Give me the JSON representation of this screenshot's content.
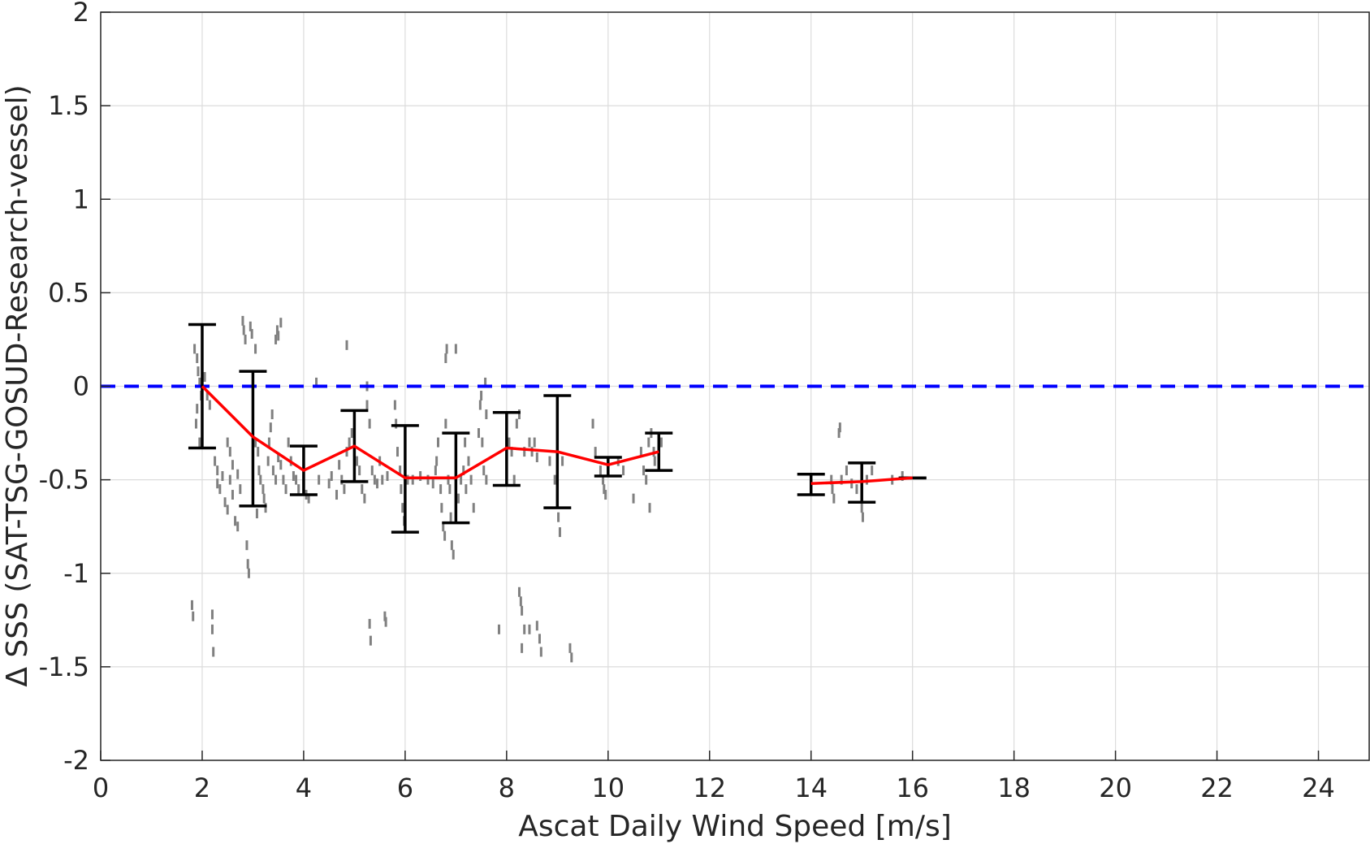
{
  "chart_data": {
    "type": "scatter",
    "xlabel": "Ascat Daily Wind Speed [m/s]",
    "ylabel": "Δ SSS (SAT-TSG-GOSUD-Research-vessel)",
    "xlim": [
      0,
      25
    ],
    "ylim": [
      -2,
      2
    ],
    "xticks": [
      0,
      2,
      4,
      6,
      8,
      10,
      12,
      14,
      16,
      18,
      20,
      22,
      24
    ],
    "yticks": [
      2,
      1.5,
      1,
      0.5,
      0,
      -0.5,
      -1,
      -1.5,
      -2
    ],
    "ytick_labels": [
      "2",
      "1.5",
      "1",
      "0.5",
      "0",
      "-0.5",
      "-1",
      "-1.5",
      "-2"
    ],
    "grid": true,
    "reference_line": {
      "y": 0,
      "color": "#0000ff",
      "style": "dashed"
    },
    "mean_series": {
      "color": "#ff0000",
      "segments": [
        {
          "x": [
            2,
            3,
            4,
            5,
            6,
            7,
            8,
            9,
            10,
            11
          ],
          "y": [
            0.0,
            -0.27,
            -0.45,
            -0.32,
            -0.49,
            -0.49,
            -0.33,
            -0.35,
            -0.42,
            -0.35
          ]
        },
        {
          "x": [
            14,
            15,
            16
          ],
          "y": [
            -0.52,
            -0.51,
            -0.49
          ]
        }
      ]
    },
    "error_bars": {
      "color": "#000000",
      "bars": [
        {
          "x": 2,
          "low": -0.33,
          "high": 0.33
        },
        {
          "x": 3,
          "low": -0.64,
          "high": 0.08
        },
        {
          "x": 4,
          "low": -0.58,
          "high": -0.32
        },
        {
          "x": 5,
          "low": -0.51,
          "high": -0.13
        },
        {
          "x": 6,
          "low": -0.78,
          "high": -0.21
        },
        {
          "x": 7,
          "low": -0.73,
          "high": -0.25
        },
        {
          "x": 8,
          "low": -0.53,
          "high": -0.14
        },
        {
          "x": 9,
          "low": -0.65,
          "high": -0.05
        },
        {
          "x": 10,
          "low": -0.48,
          "high": -0.38
        },
        {
          "x": 11,
          "low": -0.45,
          "high": -0.25
        },
        {
          "x": 14,
          "low": -0.58,
          "high": -0.47
        },
        {
          "x": 15,
          "low": -0.62,
          "high": -0.41
        },
        {
          "x": 16,
          "low": -0.49,
          "high": -0.49
        }
      ]
    },
    "scatter_color": "#808080",
    "scatter_points": [
      [
        1.85,
        0.2
      ],
      [
        1.9,
        0.15
      ],
      [
        1.92,
        0.08
      ],
      [
        1.95,
        0.02
      ],
      [
        1.98,
        -0.05
      ],
      [
        1.9,
        -0.12
      ],
      [
        1.88,
        -0.2
      ],
      [
        1.95,
        -0.3
      ],
      [
        2.05,
        0.05
      ],
      [
        2.1,
        -0.05
      ],
      [
        2.15,
        -0.1
      ],
      [
        1.8,
        -1.17
      ],
      [
        1.82,
        -1.23
      ],
      [
        2.2,
        -1.22
      ],
      [
        2.2,
        -1.3
      ],
      [
        2.22,
        -1.42
      ],
      [
        2.25,
        -0.4
      ],
      [
        2.3,
        -0.45
      ],
      [
        2.3,
        -0.52
      ],
      [
        2.35,
        -0.55
      ],
      [
        2.4,
        -0.48
      ],
      [
        2.45,
        -0.62
      ],
      [
        2.5,
        -0.66
      ],
      [
        2.55,
        -0.5
      ],
      [
        2.6,
        -0.42
      ],
      [
        2.55,
        -0.35
      ],
      [
        2.5,
        -0.3
      ],
      [
        2.6,
        -0.58
      ],
      [
        2.7,
        -0.47
      ],
      [
        2.65,
        -0.72
      ],
      [
        2.7,
        -0.75
      ],
      [
        2.75,
        -0.55
      ],
      [
        2.8,
        0.35
      ],
      [
        2.82,
        0.3
      ],
      [
        2.85,
        0.25
      ],
      [
        2.95,
        0.32
      ],
      [
        2.98,
        0.28
      ],
      [
        2.88,
        -0.85
      ],
      [
        2.9,
        -0.95
      ],
      [
        2.92,
        -1.0
      ],
      [
        3.05,
        0.2
      ],
      [
        3.05,
        -0.3
      ],
      [
        3.1,
        -0.35
      ],
      [
        3.12,
        -0.45
      ],
      [
        3.15,
        -0.5
      ],
      [
        3.2,
        -0.55
      ],
      [
        3.22,
        -0.6
      ],
      [
        3.25,
        -0.65
      ],
      [
        3.3,
        -0.4
      ],
      [
        3.32,
        -0.3
      ],
      [
        3.35,
        -0.22
      ],
      [
        3.38,
        -0.15
      ],
      [
        3.4,
        -0.45
      ],
      [
        3.45,
        -0.5
      ],
      [
        3.5,
        -0.38
      ],
      [
        3.55,
        -0.42
      ],
      [
        3.6,
        -0.5
      ],
      [
        3.65,
        -0.55
      ],
      [
        3.48,
        0.3
      ],
      [
        3.5,
        0.27
      ],
      [
        3.55,
        0.34
      ],
      [
        3.45,
        0.25
      ],
      [
        3.0,
        -0.58
      ],
      [
        3.08,
        -0.68
      ],
      [
        3.7,
        -0.3
      ],
      [
        3.75,
        -0.4
      ],
      [
        3.8,
        -0.48
      ],
      [
        3.85,
        -0.5
      ],
      [
        3.9,
        -0.55
      ],
      [
        4.0,
        -0.5
      ],
      [
        4.05,
        -0.58
      ],
      [
        4.1,
        -0.6
      ],
      [
        4.25,
        0.02
      ],
      [
        4.3,
        -0.5
      ],
      [
        4.5,
        -0.52
      ],
      [
        4.55,
        -0.48
      ],
      [
        4.7,
        -0.42
      ],
      [
        4.75,
        -0.5
      ],
      [
        4.8,
        -0.55
      ],
      [
        4.85,
        -0.35
      ],
      [
        4.9,
        -0.3
      ],
      [
        4.95,
        -0.25
      ],
      [
        5.0,
        -0.35
      ],
      [
        5.05,
        -0.4
      ],
      [
        5.1,
        -0.45
      ],
      [
        4.65,
        -0.58
      ],
      [
        5.15,
        -0.55
      ],
      [
        5.2,
        -0.6
      ],
      [
        4.85,
        0.22
      ],
      [
        5.25,
        -0.1
      ],
      [
        5.25,
        0.0
      ],
      [
        5.3,
        -0.2
      ],
      [
        5.35,
        -0.45
      ],
      [
        5.4,
        -0.5
      ],
      [
        5.45,
        -0.52
      ],
      [
        5.5,
        -0.4
      ],
      [
        5.55,
        -0.5
      ],
      [
        5.65,
        -0.48
      ],
      [
        5.3,
        -1.27
      ],
      [
        5.32,
        -1.36
      ],
      [
        5.6,
        -1.23
      ],
      [
        5.62,
        -1.26
      ],
      [
        5.8,
        -0.1
      ],
      [
        5.82,
        -0.2
      ],
      [
        5.85,
        -0.35
      ],
      [
        5.9,
        -0.45
      ],
      [
        5.92,
        -0.55
      ],
      [
        5.95,
        -0.65
      ],
      [
        5.98,
        -0.72
      ],
      [
        6.05,
        -0.5
      ],
      [
        6.15,
        -0.5
      ],
      [
        6.3,
        -0.48
      ],
      [
        6.45,
        -0.5
      ],
      [
        6.55,
        -0.52
      ],
      [
        6.6,
        -0.45
      ],
      [
        6.62,
        -0.4
      ],
      [
        6.65,
        -0.3
      ],
      [
        6.7,
        -0.55
      ],
      [
        6.72,
        -0.65
      ],
      [
        6.75,
        -0.75
      ],
      [
        6.78,
        -0.8
      ],
      [
        6.8,
        -0.2
      ],
      [
        6.8,
        0.15
      ],
      [
        6.82,
        0.2
      ],
      [
        6.85,
        -0.5
      ],
      [
        6.88,
        -0.55
      ],
      [
        6.9,
        -0.7
      ],
      [
        6.92,
        -0.85
      ],
      [
        6.95,
        -0.9
      ],
      [
        7.0,
        0.2
      ],
      [
        7.05,
        -0.6
      ],
      [
        7.1,
        -0.5
      ],
      [
        7.15,
        -0.45
      ],
      [
        7.18,
        -0.3
      ],
      [
        7.2,
        -0.55
      ],
      [
        7.25,
        -0.4
      ],
      [
        7.3,
        -0.5
      ],
      [
        7.35,
        -0.65
      ],
      [
        7.45,
        -0.25
      ],
      [
        7.48,
        -0.1
      ],
      [
        7.5,
        -0.05
      ],
      [
        7.52,
        -0.3
      ],
      [
        7.55,
        -0.45
      ],
      [
        7.6,
        -0.5
      ],
      [
        7.58,
        0.02
      ],
      [
        7.6,
        -0.15
      ],
      [
        7.85,
        -1.3
      ],
      [
        8.0,
        -0.25
      ],
      [
        8.05,
        -0.3
      ],
      [
        8.1,
        -0.35
      ],
      [
        8.15,
        -0.5
      ],
      [
        8.2,
        -0.2
      ],
      [
        8.25,
        -0.15
      ],
      [
        8.25,
        -1.1
      ],
      [
        8.28,
        -1.15
      ],
      [
        8.3,
        -1.2
      ],
      [
        8.35,
        -0.35
      ],
      [
        8.35,
        -1.3
      ],
      [
        8.3,
        -1.4
      ],
      [
        8.45,
        -0.3
      ],
      [
        8.5,
        -0.35
      ],
      [
        8.55,
        -0.3
      ],
      [
        8.6,
        -0.38
      ],
      [
        8.45,
        -1.3
      ],
      [
        8.6,
        -1.28
      ],
      [
        8.65,
        -1.35
      ],
      [
        8.68,
        -1.42
      ],
      [
        8.85,
        -0.4
      ],
      [
        8.95,
        -0.5
      ],
      [
        9.0,
        -0.6
      ],
      [
        9.02,
        -0.7
      ],
      [
        9.05,
        -0.78
      ],
      [
        9.1,
        -0.4
      ],
      [
        9.25,
        -1.4
      ],
      [
        9.28,
        -1.45
      ],
      [
        9.7,
        -0.2
      ],
      [
        9.75,
        -0.35
      ],
      [
        9.85,
        -0.45
      ],
      [
        9.9,
        -0.5
      ],
      [
        9.92,
        -0.55
      ],
      [
        9.95,
        -0.58
      ],
      [
        10.2,
        -0.4
      ],
      [
        10.3,
        -0.45
      ],
      [
        10.5,
        -0.6
      ],
      [
        10.65,
        -0.35
      ],
      [
        10.7,
        -0.45
      ],
      [
        10.75,
        -0.5
      ],
      [
        10.8,
        -0.3
      ],
      [
        10.82,
        -0.65
      ],
      [
        10.85,
        -0.25
      ],
      [
        10.9,
        -0.35
      ],
      [
        10.92,
        -0.4
      ],
      [
        11.0,
        -0.35
      ],
      [
        11.05,
        -0.3
      ],
      [
        14.4,
        -0.5
      ],
      [
        14.42,
        -0.55
      ],
      [
        14.45,
        -0.6
      ],
      [
        14.55,
        -0.25
      ],
      [
        14.57,
        -0.22
      ],
      [
        14.6,
        -0.5
      ],
      [
        14.7,
        -0.45
      ],
      [
        14.8,
        -0.52
      ],
      [
        14.9,
        -0.55
      ],
      [
        15.0,
        -0.65
      ],
      [
        15.02,
        -0.7
      ],
      [
        15.1,
        -0.5
      ],
      [
        15.2,
        -0.45
      ],
      [
        15.6,
        -0.5
      ],
      [
        15.8,
        -0.48
      ]
    ]
  }
}
